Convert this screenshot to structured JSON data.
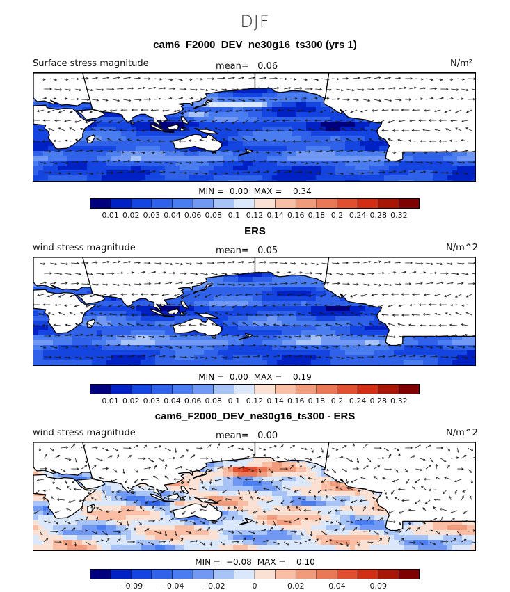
{
  "figure": {
    "season": "DJF"
  },
  "colors": {
    "palette": [
      "#00007f",
      "#0022c4",
      "#1545e0",
      "#2f62e8",
      "#4a7ef0",
      "#7198f2",
      "#a8c4f6",
      "#dbe8fb",
      "#fbe1d4",
      "#f9bea4",
      "#f19b7d",
      "#ea7755",
      "#e05030",
      "#d12e14",
      "#a81706",
      "#7e0000"
    ],
    "land": "#ffffff",
    "coast": "#000000",
    "arrow": "#1a1a1a"
  },
  "chart_data": [
    {
      "type": "heatmap",
      "title": "cam6_F2000_DEV_ne30g16_ts300 (yrs 1)",
      "left_label": "Surface stress magnitude",
      "mean_label": "mean=",
      "mean_value": "0.06",
      "units": "N/m²",
      "min_label": "MIN =",
      "min_value": "0.00",
      "max_label": "MAX =",
      "max_value": "0.34",
      "colorbar_levels": [
        "0.01",
        "0.02",
        "0.03",
        "0.04",
        "0.06",
        "0.08",
        "0.1",
        "0.12",
        "0.14",
        "0.16",
        "0.18",
        "0.2",
        "0.24",
        "0.28",
        "0.32"
      ],
      "overlay": "wind stress vectors"
    },
    {
      "type": "heatmap",
      "title": "ERS",
      "left_label": "wind stress magnitude",
      "mean_label": "mean=",
      "mean_value": "0.05",
      "units": "N/m^2",
      "min_label": "MIN =",
      "min_value": "0.00",
      "max_label": "MAX =",
      "max_value": "0.19",
      "colorbar_levels": [
        "0.01",
        "0.02",
        "0.03",
        "0.04",
        "0.06",
        "0.08",
        "0.1",
        "0.12",
        "0.14",
        "0.16",
        "0.18",
        "0.2",
        "0.24",
        "0.28",
        "0.32"
      ],
      "overlay": "wind stress vectors"
    },
    {
      "type": "heatmap",
      "title": "cam6_F2000_DEV_ne30g16_ts300 - ERS",
      "left_label": "wind stress magnitude",
      "mean_label": "mean=",
      "mean_value": "0.00",
      "units": "N/m^2",
      "min_label": "MIN =",
      "min_value": "−0.08",
      "max_label": "MAX =",
      "max_value": "0.10",
      "colorbar_levels": [
        "−0.09",
        "−0.04",
        "−0.02",
        "0",
        "0.02",
        "0.04",
        "0.09"
      ],
      "overlay": "wind stress difference vectors"
    }
  ]
}
